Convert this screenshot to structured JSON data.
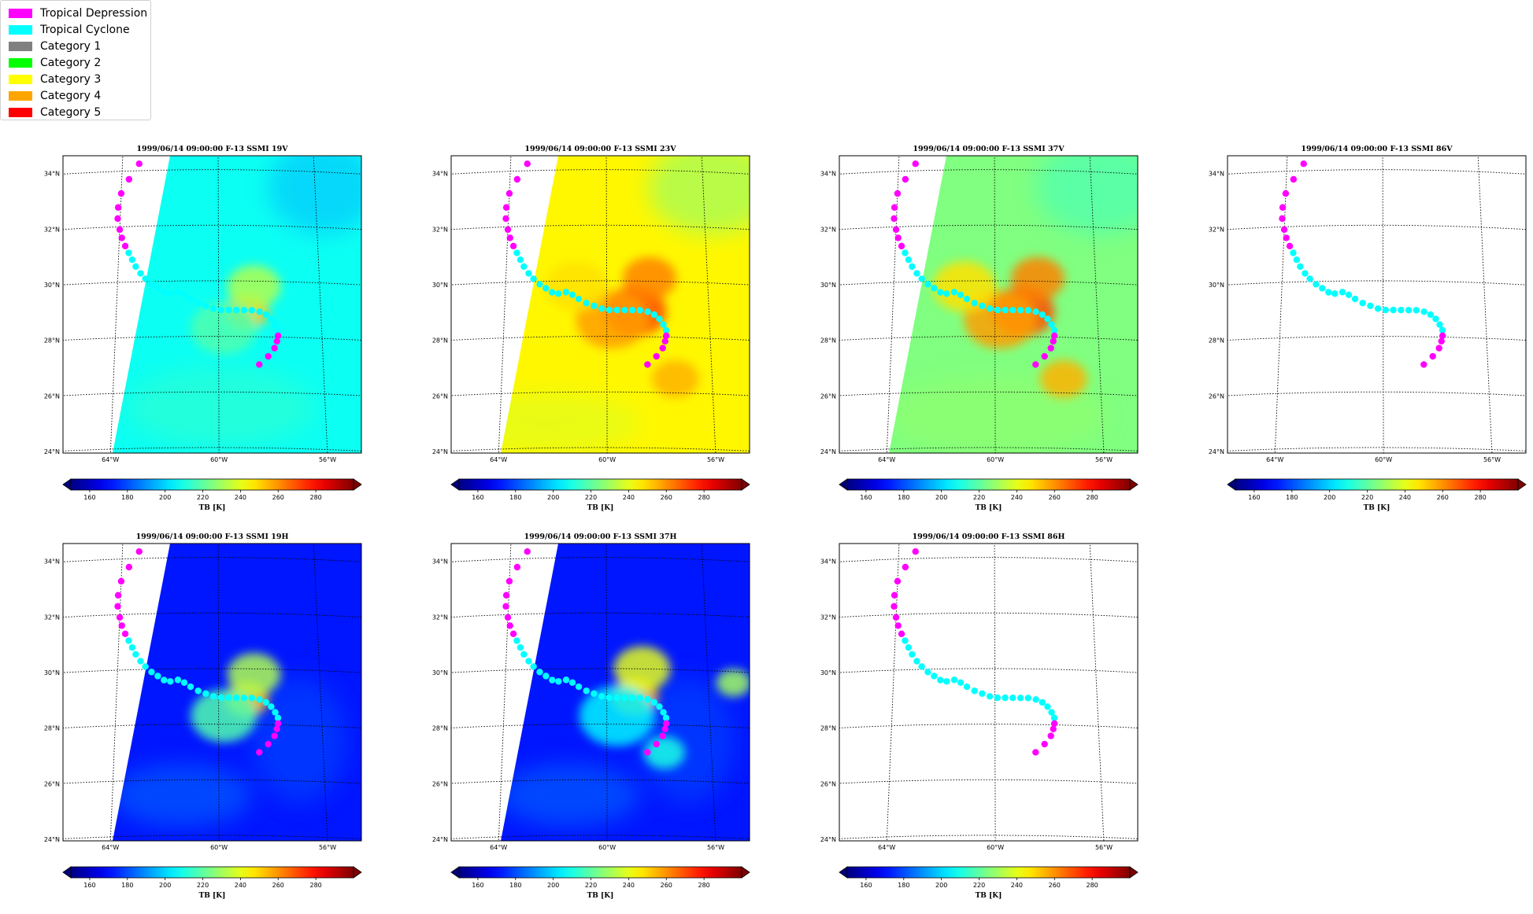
{
  "legend": {
    "placement": "top-left",
    "entries": [
      {
        "label": "Tropical Depression",
        "color": "#ff00ff"
      },
      {
        "label": "Tropical Cyclone",
        "color": "#00ffff"
      },
      {
        "label": "Category 1",
        "color": "#808080"
      },
      {
        "label": "Category 2",
        "color": "#00ff00"
      },
      {
        "label": "Category 3",
        "color": "#ffff00"
      },
      {
        "label": "Category 4",
        "color": "#ffa500"
      },
      {
        "label": "Category 5",
        "color": "#ff0000"
      }
    ]
  },
  "colorbar": {
    "label": "TB [K]",
    "ticks": [
      "160",
      "180",
      "200",
      "220",
      "240",
      "260",
      "280"
    ],
    "range": [
      150,
      300
    ],
    "colormap": "jet"
  },
  "chart_data": [
    {
      "type": "heatmap",
      "title": "1999/06/14 09:00:00  F-13 SSMI 19V",
      "background": "mid",
      "swath": true,
      "blobs": "weak"
    },
    {
      "type": "heatmap",
      "title": "1999/06/14 09:00:00  F-13 SSMI 23V",
      "background": "warm",
      "swath": true,
      "blobs": "strong"
    },
    {
      "type": "heatmap",
      "title": "1999/06/14 09:00:00  F-13 SSMI 37V",
      "background": "teal",
      "swath": true,
      "blobs": "strong"
    },
    {
      "type": "heatmap",
      "title": "1999/06/14 09:00:00  F-13 SSMI 86V",
      "background": "none",
      "swath": false,
      "blobs": "none"
    },
    {
      "type": "heatmap",
      "title": "1999/06/14 09:00:00  F-13 SSMI 19H",
      "background": "cold",
      "swath": true,
      "blobs": "weak"
    },
    {
      "type": "heatmap",
      "title": "1999/06/14 09:00:00  F-13 SSMI 37H",
      "background": "cold",
      "swath": true,
      "blobs": "medium"
    },
    {
      "type": "heatmap",
      "title": "1999/06/14 09:00:00  F-13 SSMI 86H",
      "background": "none",
      "swath": false,
      "blobs": "none"
    }
  ],
  "map": {
    "lat_ticks": [
      "34°N",
      "32°N",
      "30°N",
      "28°N",
      "26°N",
      "24°N"
    ],
    "lon_ticks": [
      "64°W",
      "60°W",
      "56°W"
    ],
    "lat_range": [
      23.8,
      34.5
    ],
    "lon_range": [
      -66.1,
      -54.4
    ]
  },
  "track": {
    "points": [
      {
        "lon": -63.3,
        "lat": 34.25,
        "stage": "Tropical Depression"
      },
      {
        "lon": -63.7,
        "lat": 33.7,
        "stage": "Tropical Depression"
      },
      {
        "lon": -64.0,
        "lat": 33.2,
        "stage": "Tropical Depression"
      },
      {
        "lon": -64.1,
        "lat": 32.7,
        "stage": "Tropical Depression"
      },
      {
        "lon": -64.1,
        "lat": 32.3,
        "stage": "Tropical Depression"
      },
      {
        "lon": -64.0,
        "lat": 31.9,
        "stage": "Tropical Depression"
      },
      {
        "lon": -63.9,
        "lat": 31.6,
        "stage": "Tropical Depression"
      },
      {
        "lon": -63.75,
        "lat": 31.3,
        "stage": "Tropical Depression"
      },
      {
        "lon": -63.6,
        "lat": 31.05,
        "stage": "Tropical Cyclone"
      },
      {
        "lon": -63.45,
        "lat": 30.8,
        "stage": "Tropical Cyclone"
      },
      {
        "lon": -63.3,
        "lat": 30.55,
        "stage": "Tropical Cyclone"
      },
      {
        "lon": -63.1,
        "lat": 30.3,
        "stage": "Tropical Cyclone"
      },
      {
        "lon": -62.9,
        "lat": 30.1,
        "stage": "Tropical Cyclone"
      },
      {
        "lon": -62.65,
        "lat": 29.9,
        "stage": "Tropical Cyclone"
      },
      {
        "lon": -62.4,
        "lat": 29.75,
        "stage": "Tropical Cyclone"
      },
      {
        "lon": -62.15,
        "lat": 29.6,
        "stage": "Tropical Cyclone"
      },
      {
        "lon": -61.9,
        "lat": 29.55,
        "stage": "Tropical Cyclone"
      },
      {
        "lon": -61.6,
        "lat": 29.6,
        "stage": "Tropical Cyclone"
      },
      {
        "lon": -61.35,
        "lat": 29.5,
        "stage": "Tropical Cyclone"
      },
      {
        "lon": -61.1,
        "lat": 29.35,
        "stage": "Tropical Cyclone"
      },
      {
        "lon": -60.8,
        "lat": 29.2,
        "stage": "Tropical Cyclone"
      },
      {
        "lon": -60.5,
        "lat": 29.1,
        "stage": "Tropical Cyclone"
      },
      {
        "lon": -60.2,
        "lat": 29.0,
        "stage": "Tropical Cyclone"
      },
      {
        "lon": -59.9,
        "lat": 28.95,
        "stage": "Tropical Cyclone"
      },
      {
        "lon": -59.6,
        "lat": 28.95,
        "stage": "Tropical Cyclone"
      },
      {
        "lon": -59.3,
        "lat": 28.95,
        "stage": "Tropical Cyclone"
      },
      {
        "lon": -59.0,
        "lat": 28.95,
        "stage": "Tropical Cyclone"
      },
      {
        "lon": -58.7,
        "lat": 28.95,
        "stage": "Tropical Cyclone"
      },
      {
        "lon": -58.4,
        "lat": 28.9,
        "stage": "Tropical Cyclone"
      },
      {
        "lon": -58.15,
        "lat": 28.8,
        "stage": "Tropical Cyclone"
      },
      {
        "lon": -57.95,
        "lat": 28.65,
        "stage": "Tropical Cyclone"
      },
      {
        "lon": -57.8,
        "lat": 28.45,
        "stage": "Tropical Cyclone"
      },
      {
        "lon": -57.7,
        "lat": 28.25,
        "stage": "Tropical Cyclone"
      },
      {
        "lon": -57.7,
        "lat": 28.05,
        "stage": "Tropical Depression"
      },
      {
        "lon": -57.75,
        "lat": 27.85,
        "stage": "Tropical Depression"
      },
      {
        "lon": -57.85,
        "lat": 27.6,
        "stage": "Tropical Depression"
      },
      {
        "lon": -58.1,
        "lat": 27.3,
        "stage": "Tropical Depression"
      },
      {
        "lon": -58.45,
        "lat": 27.0,
        "stage": "Tropical Depression"
      }
    ]
  }
}
